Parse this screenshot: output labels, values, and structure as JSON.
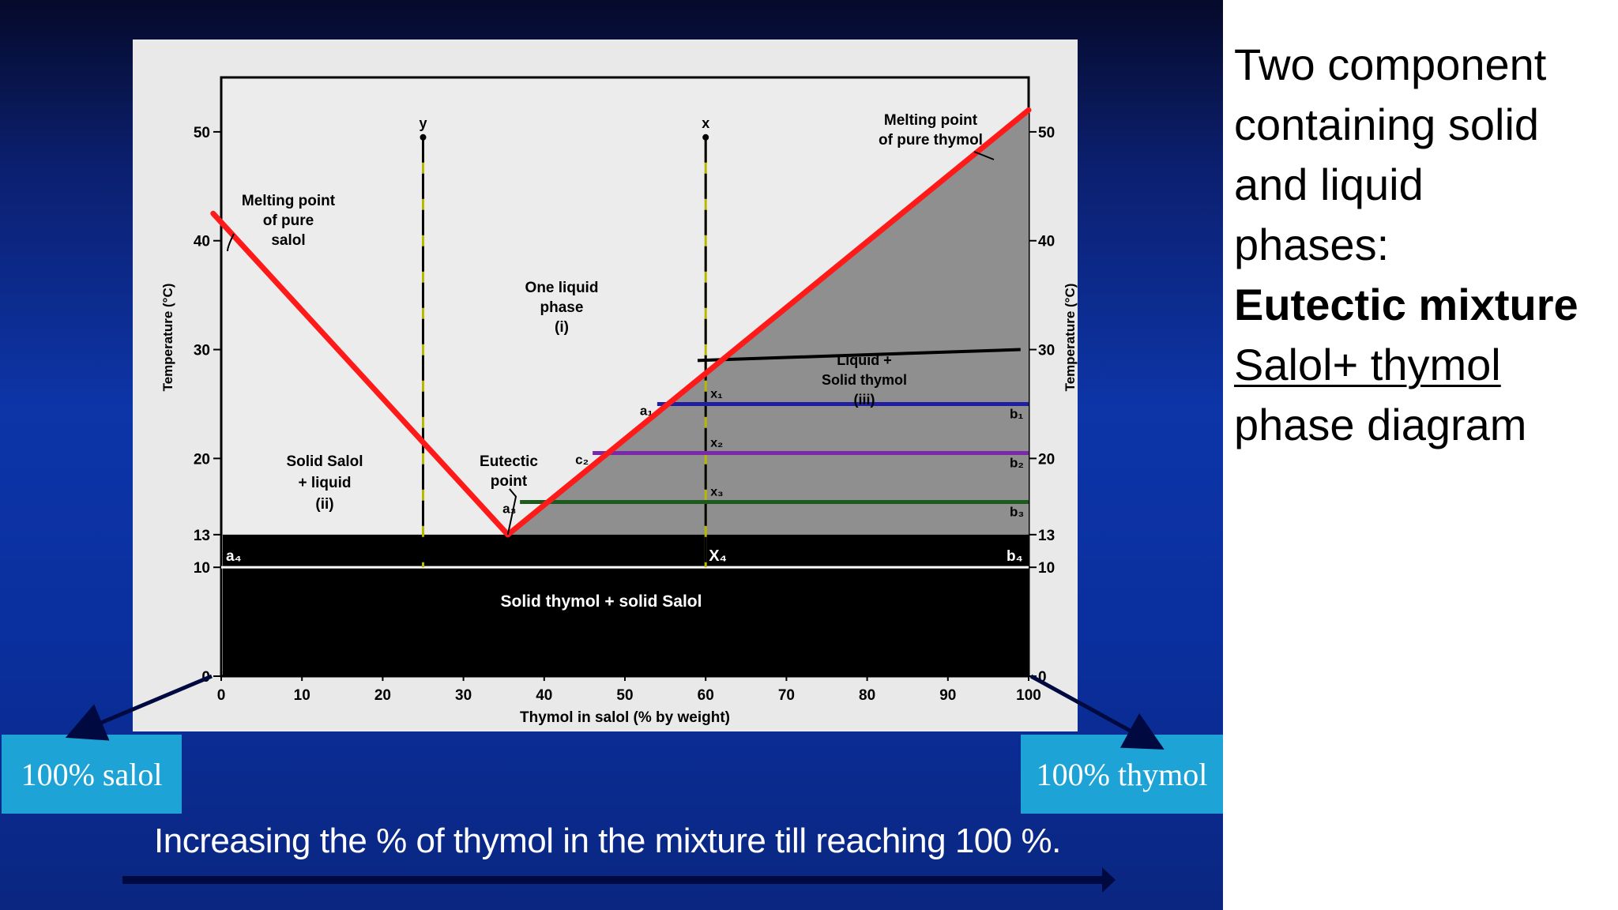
{
  "slide": {
    "side_title_lines": [
      "Two component",
      "containing solid",
      "and liquid",
      "phases:"
    ],
    "side_bold": "Eutectic mixture",
    "side_underlined": "Salol+ thymol",
    "side_last": "phase diagram",
    "callout_left": "100% salol",
    "callout_right": "100% thymol",
    "caption": "Increasing  the % of  thymol  in the mixture till reaching 100 %."
  },
  "chart_data": {
    "type": "line",
    "xlabel": "Thymol in salol (% by weight)",
    "ylabel": "Temperature (°C)",
    "ylabel_right": "Temperature (°C)",
    "xlim": [
      0,
      100
    ],
    "ylim": [
      0,
      55
    ],
    "x_ticks": [
      "0",
      "10",
      "20",
      "30",
      "40",
      "50",
      "60",
      "70",
      "80",
      "90",
      "100"
    ],
    "y_ticks_left": [
      "0",
      "10",
      "13",
      "20",
      "30",
      "40",
      "50"
    ],
    "y_ticks_right": [
      "0",
      "10",
      "13",
      "20",
      "30",
      "40",
      "50"
    ],
    "series": [
      {
        "name": "",
        "points": [
          [
            -1,
            42.5
          ],
          [
            35.5,
            13
          ]
        ],
        "color": "#ff1a1a"
      },
      {
        "name": "",
        "points": [
          [
            35.5,
            13
          ],
          [
            100,
            52
          ]
        ],
        "color": "#ff1a1a"
      }
    ],
    "tie_lines": [
      {
        "y": 25,
        "x_start": 54,
        "x_end": 100,
        "color": "#1f1fa0",
        "left_label": "a₁",
        "right_label": "b₁",
        "center_label": "x₁"
      },
      {
        "y": 20.5,
        "x_start": 46,
        "x_end": 100,
        "color": "#7a2aa8",
        "left_label": "c₂",
        "right_label": "b₂",
        "center_label": "x₂"
      },
      {
        "y": 16,
        "x_start": 37,
        "x_end": 100,
        "color": "#1e5a1e",
        "left_label": "a₃",
        "right_label": "b₃",
        "center_label": "x₃"
      }
    ],
    "extra_line": {
      "x_start": 59,
      "y_start": 29,
      "x_end": 99,
      "y_end": 30,
      "color": "#000000"
    },
    "verticals": [
      {
        "x": 25,
        "label": "y",
        "y_top": 49.5
      },
      {
        "x": 60,
        "label": "x",
        "y_top": 49.5
      }
    ],
    "solid_band": {
      "y_top": 13,
      "y_bottom": 0
    },
    "white_line_y": 10,
    "labels": {
      "melting_salol": [
        "Melting point",
        "of pure",
        "salol"
      ],
      "melting_thymol": [
        "Melting point",
        "of pure thymol"
      ],
      "one_liquid": [
        "One liquid",
        "phase",
        "(i)"
      ],
      "solid_salol": [
        "Solid Salol",
        "+ liquid",
        "(ii)"
      ],
      "eutectic": [
        "Eutectic",
        "point"
      ],
      "liquid_solid": [
        "Liquid +",
        "Solid thymol",
        "(iii)"
      ],
      "solid_both": "Solid thymol + solid Salol",
      "a4": "a₄",
      "b4": "b₄",
      "x4": "X₄"
    }
  }
}
